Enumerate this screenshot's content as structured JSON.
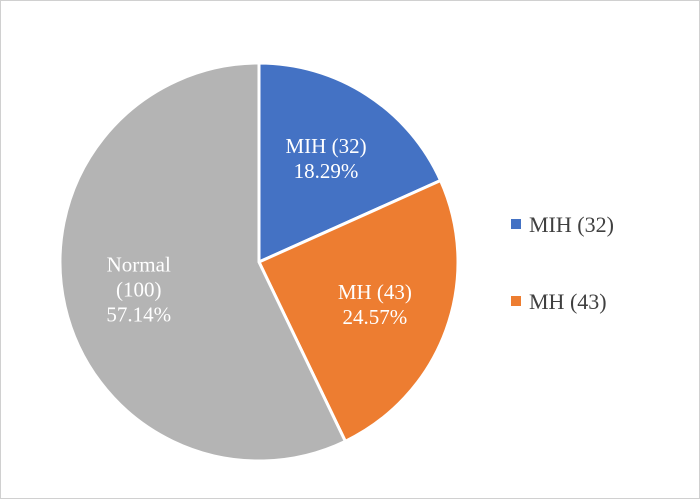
{
  "chart_data": {
    "type": "pie",
    "title": "",
    "legend_position": "right",
    "slices": [
      {
        "name": "MIH (32)",
        "value": 32,
        "percent_label": "18.29%",
        "label_lines": [
          "MIH (32)",
          "18.29%"
        ],
        "color": "#4472C4",
        "in_legend": true
      },
      {
        "name": "MH (43)",
        "value": 43,
        "percent_label": "24.57%",
        "label_lines": [
          "MH (43)",
          "24.57%"
        ],
        "color": "#ED7D31",
        "in_legend": true
      },
      {
        "name": "Normal (100)",
        "value": 100,
        "percent_label": "57.14%",
        "label_lines": [
          "Normal",
          "(100)",
          "57.14%"
        ],
        "color": "#B4B4B4",
        "in_legend": false
      }
    ]
  }
}
